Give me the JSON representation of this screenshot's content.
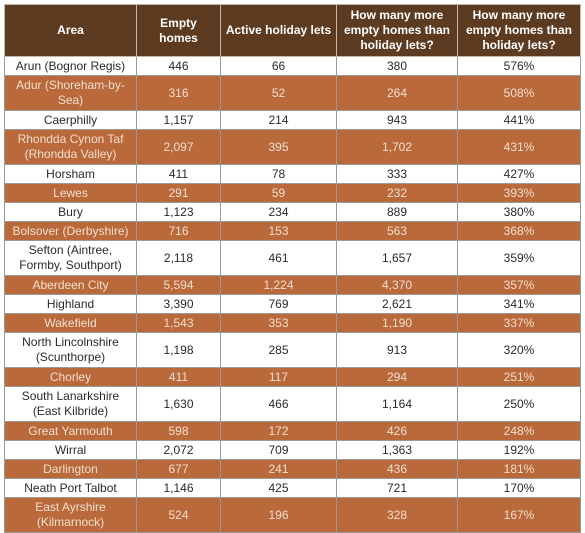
{
  "table": {
    "headers": [
      "Area",
      "Empty homes",
      "Active holiday lets",
      "How many more empty homes than holiday lets?",
      "How many more empty homes than holiday lets?"
    ],
    "rows": [
      {
        "area": "Arun (Bognor Regis)",
        "empty": "446",
        "lets": "66",
        "more": "380",
        "pct": "576%"
      },
      {
        "area": "Adur (Shoreham-by-Sea)",
        "empty": "316",
        "lets": "52",
        "more": "264",
        "pct": "508%"
      },
      {
        "area": "Caerphilly",
        "empty": "1,157",
        "lets": "214",
        "more": "943",
        "pct": "441%"
      },
      {
        "area": "Rhondda Cynon Taf (Rhondda Valley)",
        "empty": "2,097",
        "lets": "395",
        "more": "1,702",
        "pct": "431%"
      },
      {
        "area": "Horsham",
        "empty": "411",
        "lets": "78",
        "more": "333",
        "pct": "427%"
      },
      {
        "area": "Lewes",
        "empty": "291",
        "lets": "59",
        "more": "232",
        "pct": "393%"
      },
      {
        "area": "Bury",
        "empty": "1,123",
        "lets": "234",
        "more": "889",
        "pct": "380%"
      },
      {
        "area": "Bolsover (Derbyshire)",
        "empty": "716",
        "lets": "153",
        "more": "563",
        "pct": "368%"
      },
      {
        "area": "Sefton (Aintree, Formby, Southport)",
        "empty": "2,118",
        "lets": "461",
        "more": "1,657",
        "pct": "359%"
      },
      {
        "area": "Aberdeen City",
        "empty": "5,594",
        "lets": "1,224",
        "more": "4,370",
        "pct": "357%"
      },
      {
        "area": "Highland",
        "empty": "3,390",
        "lets": "769",
        "more": "2,621",
        "pct": "341%"
      },
      {
        "area": "Wakefield",
        "empty": "1,543",
        "lets": "353",
        "more": "1,190",
        "pct": "337%"
      },
      {
        "area": "North Lincolnshire (Scunthorpe)",
        "empty": "1,198",
        "lets": "285",
        "more": "913",
        "pct": "320%"
      },
      {
        "area": "Chorley",
        "empty": "411",
        "lets": "117",
        "more": "294",
        "pct": "251%"
      },
      {
        "area": "South Lanarkshire (East Kilbride)",
        "empty": "1,630",
        "lets": "466",
        "more": "1,164",
        "pct": "250%"
      },
      {
        "area": "Great Yarmouth",
        "empty": "598",
        "lets": "172",
        "more": "426",
        "pct": "248%"
      },
      {
        "area": "Wirral",
        "empty": "2,072",
        "lets": "709",
        "more": "1,363",
        "pct": "192%"
      },
      {
        "area": "Darlington",
        "empty": "677",
        "lets": "241",
        "more": "436",
        "pct": "181%"
      },
      {
        "area": "Neath Port Talbot",
        "empty": "1,146",
        "lets": "425",
        "more": "721",
        "pct": "170%"
      },
      {
        "area": "East Ayrshire (Kilmarnock)",
        "empty": "524",
        "lets": "196",
        "more": "328",
        "pct": "167%"
      }
    ]
  },
  "colors": {
    "header_bg": "#5d3b21",
    "header_text": "#ffffff",
    "row_dark_bg": "#b9693a",
    "row_dark_text": "#f3dfd0",
    "row_light_bg": "#ffffff"
  }
}
